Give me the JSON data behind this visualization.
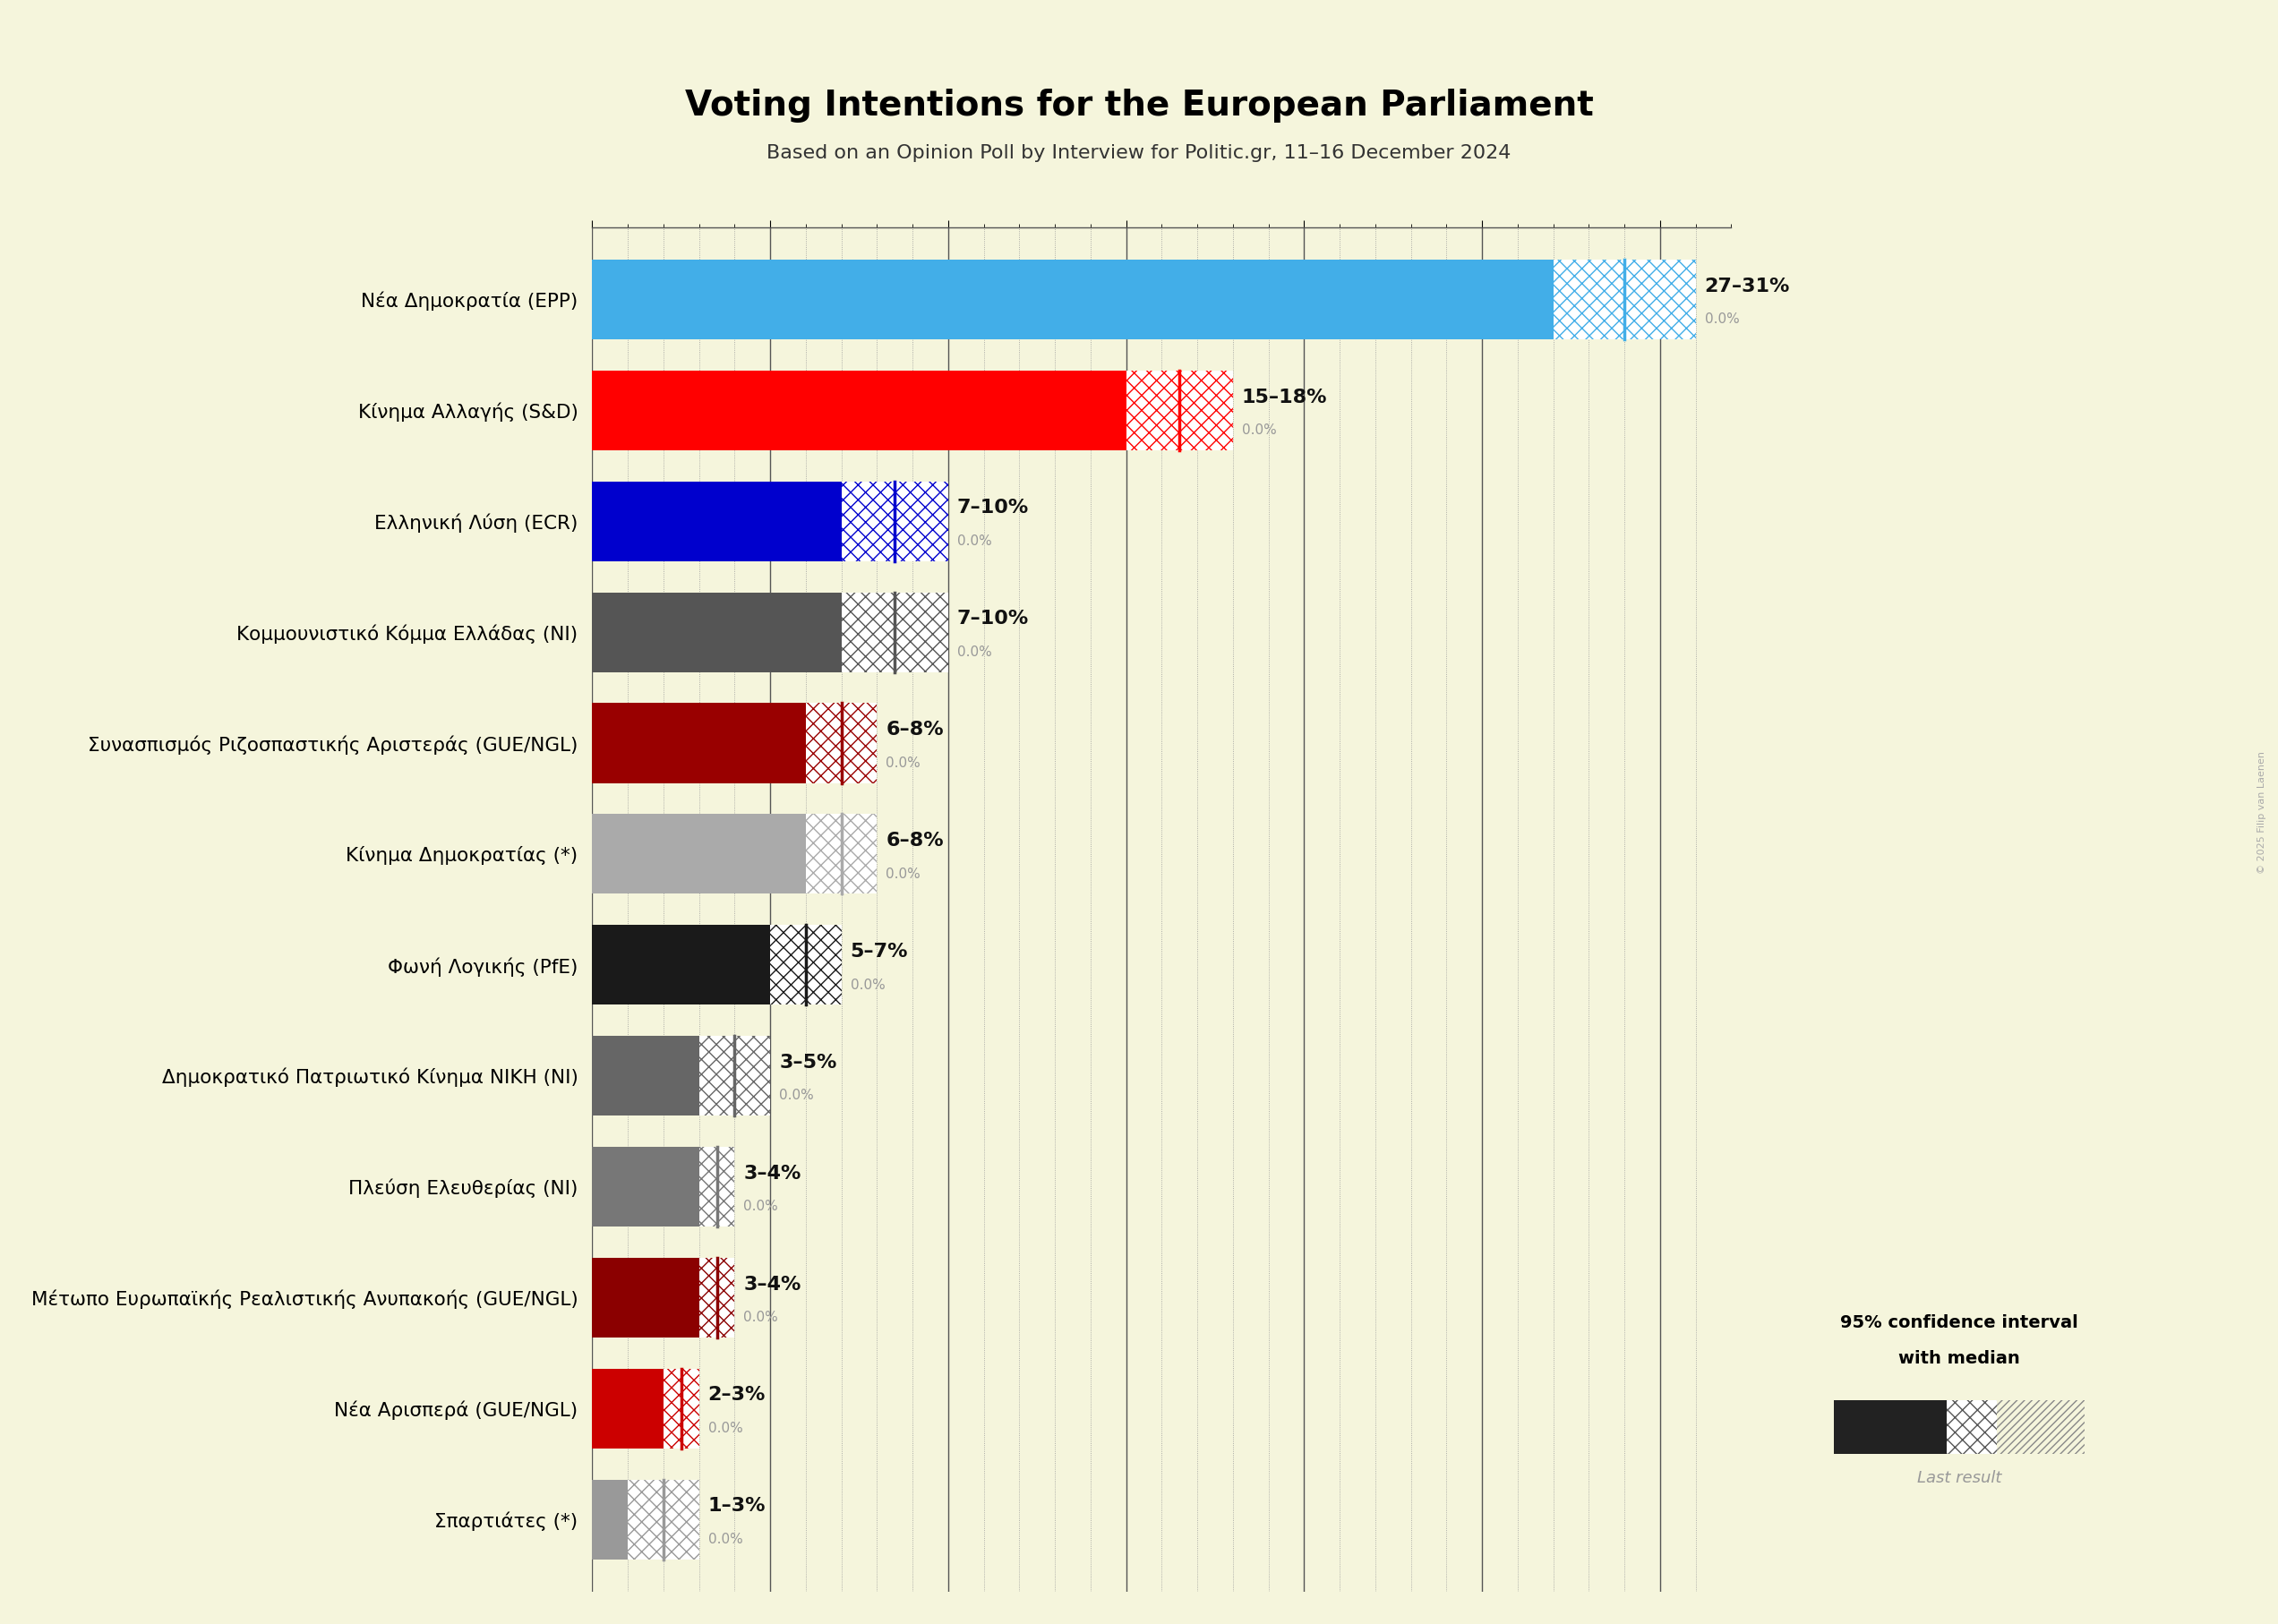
{
  "title": "Voting Intentions for the European Parliament",
  "subtitle": "Based on an Opinion Poll by Interview for Politic.gr, 11–16 December 2024",
  "copyright": "© 2025 Filip van Laenen",
  "background_color": "#f5f5dc",
  "parties": [
    {
      "name": "Nέα Δημοκρατία (EPP)",
      "low": 27,
      "high": 31,
      "median": 29,
      "last": 0.0,
      "color": "#42aee8"
    },
    {
      "name": "Κίνημα Αλλαγής (S&D)",
      "low": 15,
      "high": 18,
      "median": 16.5,
      "last": 0.0,
      "color": "#ff0000"
    },
    {
      "name": "Ελληνική Λύση (ECR)",
      "low": 7,
      "high": 10,
      "median": 8.5,
      "last": 0.0,
      "color": "#0000cd"
    },
    {
      "name": "Κομμουνιστικό Κόμμα Ελλάδας (NI)",
      "low": 7,
      "high": 10,
      "median": 8.5,
      "last": 0.0,
      "color": "#555555"
    },
    {
      "name": "Συνασπισμός Ριζοσπαστικής Αριστεράς (GUE/NGL)",
      "low": 6,
      "high": 8,
      "median": 7.0,
      "last": 0.0,
      "color": "#990000"
    },
    {
      "name": "Κίνημα Δημοκρατίας (*)",
      "low": 6,
      "high": 8,
      "median": 7.0,
      "last": 0.0,
      "color": "#aaaaaa"
    },
    {
      "name": "Φωνή Λογικής (PfE)",
      "low": 5,
      "high": 7,
      "median": 6.0,
      "last": 0.0,
      "color": "#1a1a1a"
    },
    {
      "name": "Δημοκρατικό Πατριωτικό Κίνημα ΝΙΚΗ (NI)",
      "low": 3,
      "high": 5,
      "median": 4.0,
      "last": 0.0,
      "color": "#666666"
    },
    {
      "name": "Πλεύση Ελευθερίας (NI)",
      "low": 3,
      "high": 4,
      "median": 3.5,
      "last": 0.0,
      "color": "#777777"
    },
    {
      "name": "Μέτωπο Ευρωπαϊκής Ρεαλιστικής Ανυπακοής (GUE/NGL)",
      "low": 3,
      "high": 4,
      "median": 3.5,
      "last": 0.0,
      "color": "#8b0000"
    },
    {
      "name": "Νέα Αρισπερά (GUE/NGL)",
      "low": 2,
      "high": 3,
      "median": 2.5,
      "last": 0.0,
      "color": "#cc0000"
    },
    {
      "name": "Σπαρτιάτες (*)",
      "low": 1,
      "high": 3,
      "median": 2.0,
      "last": 0.0,
      "color": "#999999"
    }
  ],
  "xlim": [
    0,
    32
  ],
  "legend_text1": "95% confidence interval",
  "legend_text2": "with median",
  "legend_text3": "Last result"
}
